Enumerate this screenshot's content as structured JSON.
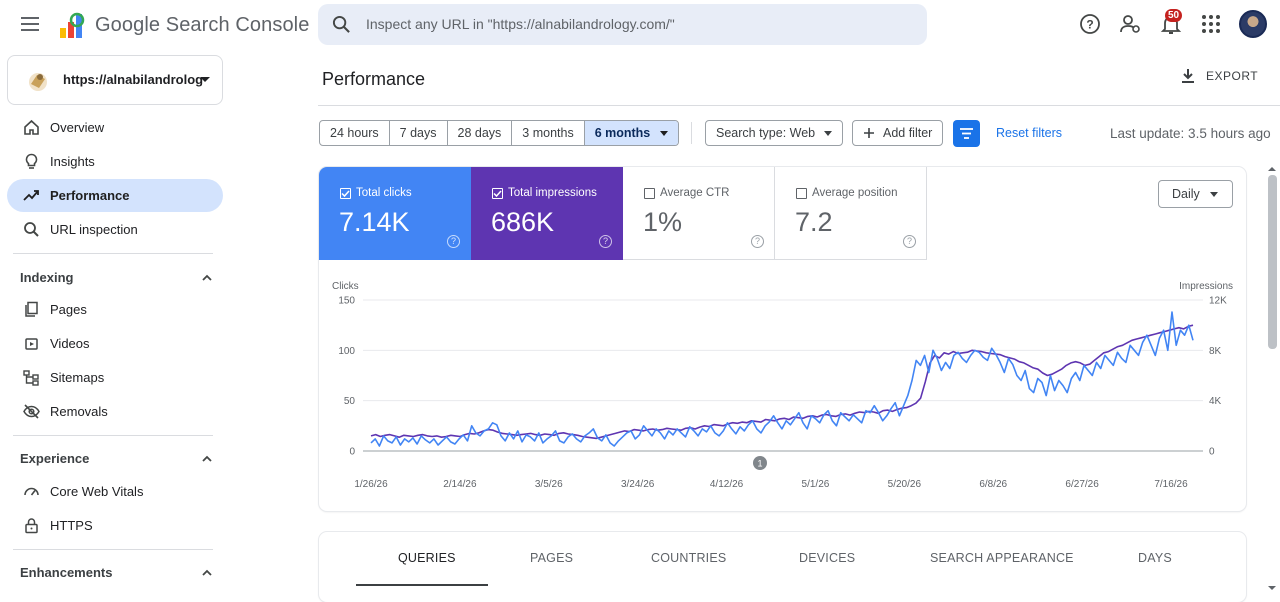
{
  "app": {
    "brand": "Google Search Console"
  },
  "search": {
    "placeholder": "Inspect any URL in \"https://alnabilandrology.com/\""
  },
  "topbar": {
    "notification_count": "50"
  },
  "property": {
    "label": "https://alnabilandrology.com/"
  },
  "sidebar": {
    "items_top": [
      {
        "label": "Overview",
        "icon": "home-icon"
      },
      {
        "label": "Insights",
        "icon": "lightbulb-icon"
      },
      {
        "label": "Performance",
        "icon": "trending-up-icon",
        "active": true
      },
      {
        "label": "URL inspection",
        "icon": "search-icon"
      }
    ],
    "indexing": {
      "title": "Indexing",
      "items": [
        {
          "label": "Pages",
          "icon": "pages-icon"
        },
        {
          "label": "Videos",
          "icon": "video-icon"
        },
        {
          "label": "Sitemaps",
          "icon": "sitemap-icon"
        },
        {
          "label": "Removals",
          "icon": "eye-off-icon"
        }
      ]
    },
    "experience": {
      "title": "Experience",
      "items": [
        {
          "label": "Core Web Vitals",
          "icon": "speed-icon"
        },
        {
          "label": "HTTPS",
          "icon": "lock-icon"
        }
      ]
    },
    "enhancements": {
      "title": "Enhancements"
    }
  },
  "page": {
    "title": "Performance",
    "export_label": "EXPORT",
    "date_ranges": [
      "24 hours",
      "7 days",
      "28 days",
      "3 months",
      "6 months"
    ],
    "date_selected": "6 months",
    "search_type": "Search type: Web",
    "add_filter": "Add filter",
    "reset_filters": "Reset filters",
    "last_update": "Last update: 3.5 hours ago"
  },
  "metrics": {
    "clicks": {
      "label": "Total clicks",
      "value": "7.14K",
      "checked": true
    },
    "impressions": {
      "label": "Total impressions",
      "value": "686K",
      "checked": true
    },
    "ctr": {
      "label": "Average CTR",
      "value": "1%",
      "checked": false
    },
    "position": {
      "label": "Average position",
      "value": "7.2",
      "checked": false
    }
  },
  "granularity": "Daily",
  "chart_data": {
    "type": "line",
    "ylabel_left": "Clicks",
    "ylabel_right": "Impressions",
    "left_ticks": [
      "150",
      "100",
      "50",
      "0"
    ],
    "right_ticks": [
      "12K",
      "8K",
      "4K",
      "0"
    ],
    "ylim_left": [
      0,
      150
    ],
    "ylim_right": [
      0,
      12000
    ],
    "x_ticks": [
      "1/26/26",
      "2/14/26",
      "3/5/26",
      "3/24/26",
      "4/12/26",
      "5/1/26",
      "5/20/26",
      "6/8/26",
      "6/27/26",
      "7/16/26"
    ],
    "annotation": "1",
    "grid": true,
    "colors": {
      "clicks": "#4285f4",
      "impressions": "#5e35b1"
    },
    "series": [
      {
        "name": "Clicks",
        "axis": "left",
        "values": [
          8,
          12,
          5,
          15,
          10,
          8,
          14,
          6,
          12,
          9,
          13,
          7,
          15,
          11,
          8,
          12,
          6,
          10,
          14,
          9,
          7,
          12,
          16,
          10,
          25,
          18,
          15,
          20,
          22,
          28,
          26,
          15,
          10,
          18,
          12,
          20,
          9,
          16,
          14,
          10,
          18,
          8,
          12,
          15,
          20,
          10,
          8,
          14,
          17,
          12,
          9,
          15,
          18,
          22,
          13,
          10,
          16,
          8,
          5,
          10,
          14,
          18,
          20,
          12,
          16,
          25,
          20,
          15,
          22,
          18,
          12,
          20,
          16,
          22,
          18,
          14,
          24,
          20,
          15,
          22,
          19,
          25,
          18,
          15,
          20,
          28,
          22,
          17,
          24,
          20,
          26,
          30,
          22,
          18,
          25,
          29,
          35,
          28,
          22,
          30,
          26,
          32,
          38,
          28,
          22,
          35,
          32,
          28,
          36,
          40,
          30,
          25,
          38,
          34,
          30,
          36,
          32,
          28,
          40,
          38,
          45,
          38,
          30,
          35,
          42,
          48,
          35,
          45,
          55,
          70,
          90,
          85,
          95,
          78,
          100,
          92,
          80,
          88,
          82,
          95,
          98,
          92,
          88,
          95,
          100,
          98,
          93,
          90,
          102,
          96,
          88,
          78,
          92,
          86,
          75,
          70,
          80,
          62,
          58,
          72,
          68,
          55,
          75,
          60,
          70,
          65,
          58,
          72,
          78,
          70,
          85,
          80,
          75,
          88,
          82,
          95,
          90,
          85,
          98,
          92,
          88,
          105,
          100,
          95,
          108,
          115,
          105,
          95,
          112,
          120,
          100,
          138,
          105,
          120,
          115,
          125,
          110
        ],
        "note": "approximate daily values read off the chart"
      },
      {
        "name": "Impressions",
        "axis": "right",
        "values": [
          1200,
          1300,
          1150,
          1250,
          1300,
          1200,
          1100,
          1250,
          1200,
          1150,
          1250,
          1300,
          1200,
          1150,
          1200,
          1100,
          1150,
          1250,
          1200,
          1150,
          1300,
          1400,
          1350,
          1450,
          1600,
          1700,
          1650,
          1500,
          1400,
          1350,
          1300,
          1250,
          1300,
          1350,
          1400,
          1300,
          1250,
          1350,
          1300,
          1250,
          1400,
          1450,
          1350,
          1300,
          1250,
          1150,
          1100,
          1050,
          1000,
          1100,
          1200,
          1300,
          1400,
          1500,
          1600,
          1550,
          1700,
          1650,
          1600,
          1700,
          1750,
          1650,
          1700,
          1800,
          1750,
          1700,
          1650,
          1800,
          1850,
          1750,
          1900,
          2000,
          1950,
          2100,
          2050,
          2000,
          2150,
          2250,
          2200,
          2300,
          2250,
          2400,
          2350,
          2300,
          2500,
          2450,
          2400,
          2550,
          2600,
          2500,
          2700,
          2650,
          2600,
          2750,
          2800,
          2700,
          2850,
          2900,
          2800,
          2750,
          2900,
          2950,
          2850,
          3000,
          3100,
          3050,
          3150,
          3100,
          3000,
          3200,
          3250,
          3150,
          3300,
          3400,
          3450,
          3600,
          3800,
          4200,
          5500,
          7000,
          7600,
          7400,
          7800,
          7700,
          7900,
          7750,
          7800,
          7850,
          8000,
          7950,
          7900,
          7800,
          7750,
          7700,
          7650,
          7500,
          7400,
          7300,
          7100,
          7000,
          6800,
          6600,
          6500,
          6200,
          6000,
          6100,
          6300,
          6500,
          6800,
          7000,
          7100,
          7000,
          6800,
          6900,
          7200,
          7500,
          7800,
          7900,
          8100,
          8300,
          8400,
          8600,
          8800,
          8900,
          9000,
          9100,
          9200,
          9300,
          9400,
          9500,
          9600,
          9700,
          9800,
          9700,
          9900,
          10000
        ],
        "note": "approximate daily values read off the chart"
      }
    ]
  },
  "tabs": [
    "QUERIES",
    "PAGES",
    "COUNTRIES",
    "DEVICES",
    "SEARCH APPEARANCE",
    "DAYS"
  ],
  "active_tab": "QUERIES"
}
